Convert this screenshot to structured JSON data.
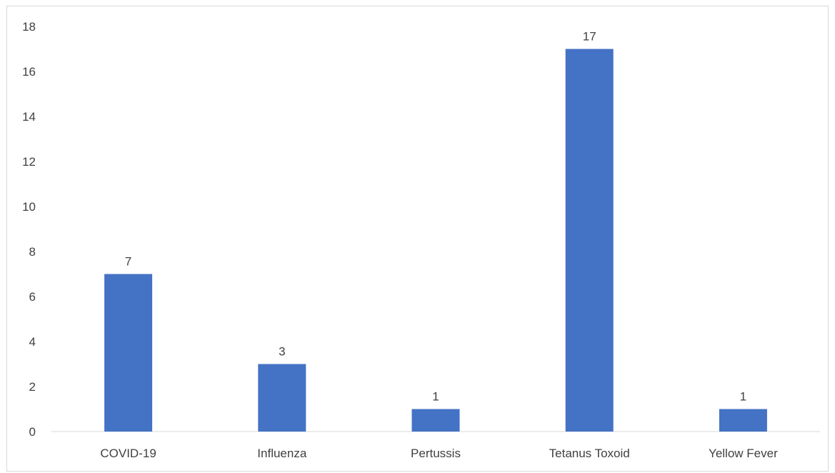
{
  "chart_data": {
    "type": "bar",
    "title": "",
    "xlabel": "",
    "ylabel": "",
    "categories": [
      "COVID-19",
      "Influenza",
      "Pertussis",
      "Tetanus Toxoid",
      "Yellow Fever"
    ],
    "values": [
      7,
      3,
      1,
      17,
      1
    ],
    "ylim": [
      0,
      18
    ],
    "yticks": [
      0,
      2,
      4,
      6,
      8,
      10,
      12,
      14,
      16,
      18
    ],
    "data_labels": true,
    "grid": false,
    "legend": "none",
    "bar_color": "#4472c4",
    "axis_color": "#d9d9d9",
    "text_color": "#404040"
  }
}
